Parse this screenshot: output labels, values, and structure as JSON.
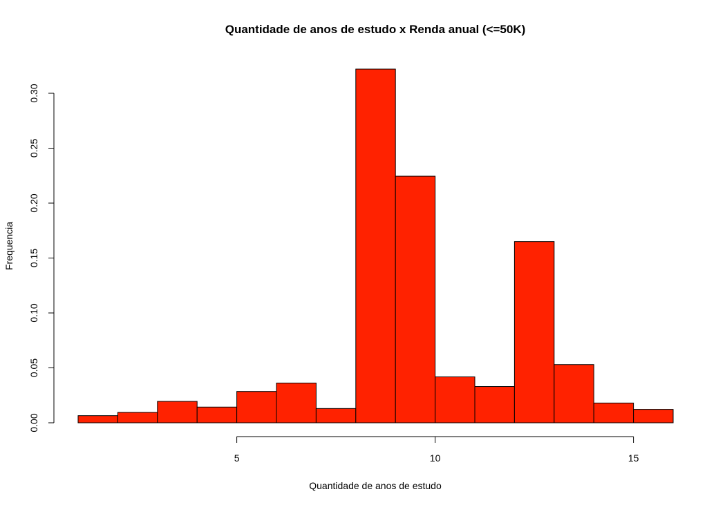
{
  "chart_data": {
    "type": "bar",
    "title": "Quantidade de anos de estudo x Renda anual (<=50K)",
    "xlabel": "Quantidade de anos de estudo",
    "ylabel": "Frequencia",
    "bin_edges": [
      1,
      2,
      3,
      4,
      5,
      6,
      7,
      8,
      9,
      10,
      11,
      12,
      13,
      14,
      15,
      16
    ],
    "values": [
      0.0065,
      0.0095,
      0.0195,
      0.0143,
      0.0285,
      0.0362,
      0.013,
      0.322,
      0.2245,
      0.0418,
      0.033,
      0.165,
      0.053,
      0.018,
      0.0122
    ],
    "xticks": [
      5,
      10,
      15
    ],
    "xtick_labels": [
      "5",
      "10",
      "15"
    ],
    "yticks": [
      0.0,
      0.05,
      0.1,
      0.15,
      0.2,
      0.25,
      0.3
    ],
    "ytick_labels": [
      "0.00",
      "0.05",
      "0.10",
      "0.15",
      "0.20",
      "0.25",
      "0.30"
    ],
    "xlim": [
      1,
      16
    ],
    "ylim": [
      0,
      0.33
    ],
    "grid": false,
    "legend": "none",
    "colors": {
      "bar_fill": "#ff2200",
      "bar_stroke": "#000000",
      "axis": "#000000"
    }
  }
}
